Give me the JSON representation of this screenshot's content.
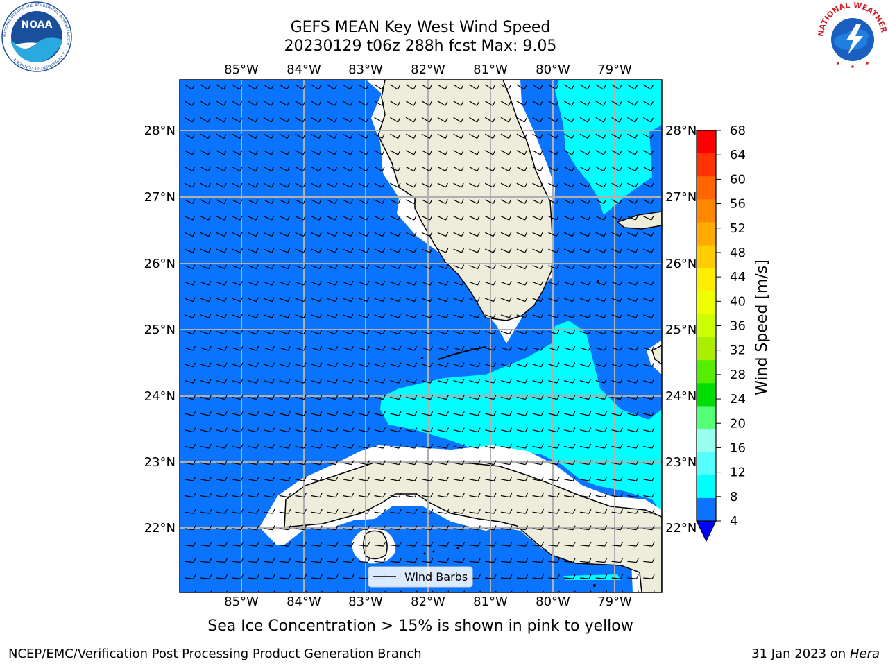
{
  "header": {
    "title_line1": "GEFS MEAN Key West Wind Speed",
    "title_line2": "20230129 t06z 288h fcst   Max: 9.05"
  },
  "logos": {
    "left_icon": "noaa-logo-icon",
    "left_text": "NOAA",
    "left_ring_text": "NATIONAL OCEANIC AND ATMOSPHERIC ADMINISTRATION · U.S. DEPARTMENT OF COMMERCE",
    "right_icon": "national-weather-service-logo-icon",
    "right_ring_text": "NATIONAL WEATHER SERVICE"
  },
  "map": {
    "lon_labels": [
      "85°W",
      "84°W",
      "83°W",
      "82°W",
      "81°W",
      "80°W",
      "79°W"
    ],
    "lat_labels": [
      "28°N",
      "27°N",
      "26°N",
      "25°N",
      "24°N",
      "23°N",
      "22°N"
    ],
    "legend_label": "Wind Barbs",
    "colors": {
      "ocean_4_8": "#0a74ff",
      "ocean_8_12": "#00ffff",
      "land": "#eeeddc",
      "coast_gap": "#ffffff",
      "grid": "#b0b0b0"
    }
  },
  "colorbar": {
    "label": "Wind Speed [m/s]",
    "ticks": [
      "68",
      "64",
      "60",
      "56",
      "52",
      "48",
      "44",
      "40",
      "36",
      "32",
      "28",
      "24",
      "20",
      "16",
      "12",
      "8",
      "4"
    ],
    "colors": [
      "#ff0000",
      "#ff3300",
      "#ff6600",
      "#ff8800",
      "#ffaa00",
      "#ffcc00",
      "#ffee00",
      "#eeff00",
      "#ccff00",
      "#aaee00",
      "#55ee00",
      "#00dd00",
      "#55ff77",
      "#99ffee",
      "#55ffff",
      "#00ffff",
      "#0a74ff"
    ],
    "extend_color": "#0000ff"
  },
  "footer": {
    "subtitle": "Sea Ice Concentration > 15% is shown in pink to yellow",
    "left": "NCEP/EMC/Verification Post Processing Product Generation Branch",
    "right_prefix": "31 Jan 2023 on ",
    "right_host": "Hera"
  }
}
